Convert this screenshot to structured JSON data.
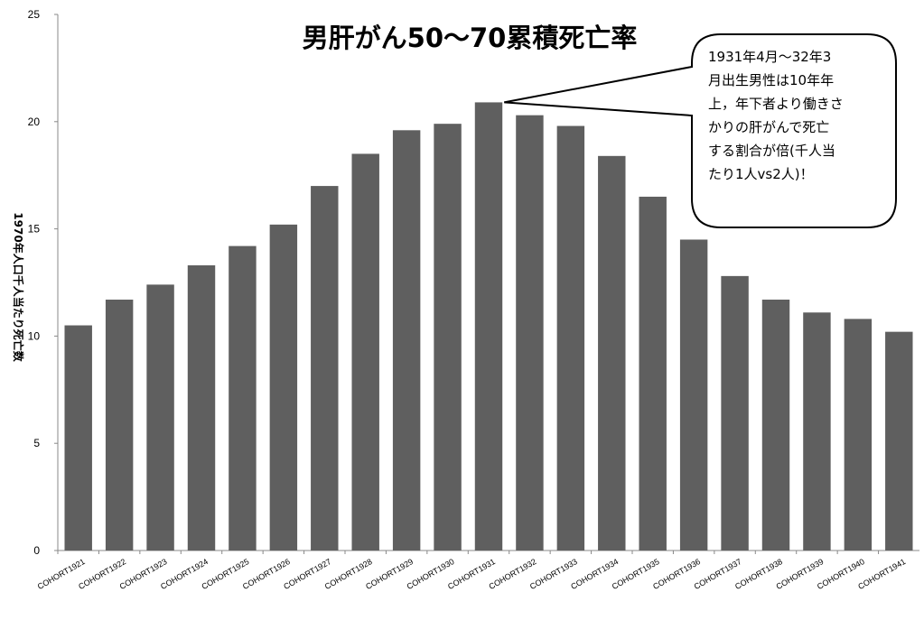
{
  "chart_data": {
    "type": "bar",
    "title": "男肝がん50～70累積死亡率",
    "xlabel": "",
    "ylabel": "1970年人口千人当たり死亡数",
    "ylim": [
      0,
      25
    ],
    "yticks": [
      0,
      5,
      10,
      15,
      20,
      25
    ],
    "grid": false,
    "legend": "none",
    "bar_color": "#5f5f5f",
    "categories": [
      "COHORT1921",
      "COHORT1922",
      "COHORT1923",
      "COHORT1924",
      "COHORT1925",
      "COHORT1926",
      "COHORT1927",
      "COHORT1928",
      "COHORT1929",
      "COHORT1930",
      "COHORT1931",
      "COHORT1932",
      "COHORT1933",
      "COHORT1934",
      "COHORT1935",
      "COHORT1936",
      "COHORT1937",
      "COHORT1938",
      "COHORT1939",
      "COHORT1940",
      "COHORT1941"
    ],
    "values": [
      10.5,
      11.7,
      12.4,
      13.3,
      14.2,
      15.2,
      17.0,
      18.5,
      19.6,
      19.9,
      20.9,
      20.3,
      19.8,
      18.4,
      16.5,
      14.5,
      12.8,
      11.7,
      11.1,
      10.8,
      10.2
    ],
    "annotation": {
      "lines": [
        "1931年4月～32年3",
        "月出生男性は10年年",
        "上，年下者より働きさ",
        "かりの肝がんで死亡",
        "する割合が倍(千人当",
        "たり1人vs2人)！"
      ],
      "target_category": "COHORT1931"
    }
  }
}
